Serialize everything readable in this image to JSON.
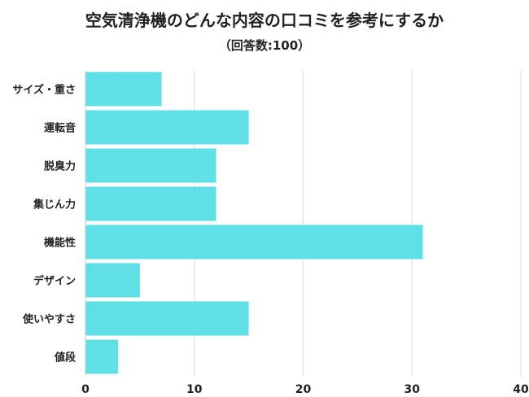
{
  "chart_data": {
    "type": "bar",
    "orientation": "horizontal",
    "title": "空気清浄機のどんな内容の口コミを参考にするか",
    "subtitle": "（回答数:100）",
    "categories": [
      "サイズ・重さ",
      "運転音",
      "脱臭力",
      "集じん力",
      "機能性",
      "デザイン",
      "使いやすさ",
      "値段"
    ],
    "values": [
      7,
      15,
      12,
      12,
      31,
      5,
      15,
      3
    ],
    "xlim": [
      0,
      40
    ],
    "xticks": [
      0,
      10,
      20,
      30,
      40
    ],
    "xtick_labels": [
      "0",
      "10",
      "20",
      "30",
      "40"
    ],
    "grid": true,
    "bar_color": "#5ee0e6",
    "grid_color": "#dcdcdc"
  }
}
